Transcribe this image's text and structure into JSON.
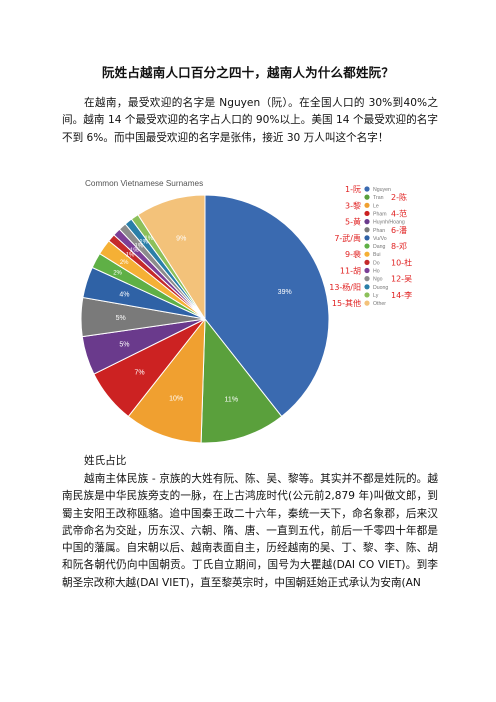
{
  "title": "阮姓占越南人口百分之四十，越南人为什么都姓阮？",
  "intro_paragraph": "在越南，最受欢迎的名字是 Nguyen（阮）。在全国人口的 30%到40%之间。越南 14 个最受欢迎的名字占人口的 90%以上。美国 14 个最受欢迎的名字不到 6%。而中国最受欢迎的名字是张伟，接近 30 万人叫这个名字！",
  "section_heading": "姓氏占比",
  "body_paragraph": "越南主体民族 - 京族的大姓有阮、陈、吴、黎等。其实并不都是姓阮的。越南民族是中华民族旁支的一脉，在上古鸿庞时代(公元前2,879 年)叫做文郎，到蜀主安阳王改称瓯貉。迨中国秦王政二十六年，秦统一天下，命名象郡，后来汉武帝命名为交趾，历东汉、六朝、隋、唐、一直到五代，前后一千零四十年都是中国的藩属。自宋朝以后、越南表面自主，历经越南的吴、丁、黎、李、陈、胡和阮各朝代仍向中国朝贡。丁氏自立期间，国号为大瞿越(DAI CO VIET)。到李朝圣宗改称大越(DAI VIET)，直至黎英宗时，中国朝廷始正式承认为安南(AN",
  "chart_data": {
    "type": "pie",
    "title": "Common Vietnamese Surnames",
    "legend_position": "right",
    "series": [
      {
        "name": "Nguyen",
        "value": 39,
        "label": "39%",
        "color": "#3a6ab0",
        "annotation": "1-阮"
      },
      {
        "name": "Tran",
        "value": 11,
        "label": "11%",
        "color": "#5aa03c",
        "annotation": "2-陈"
      },
      {
        "name": "Le",
        "value": 10,
        "label": "10%",
        "color": "#f0a030",
        "annotation": "3-黎"
      },
      {
        "name": "Pham",
        "value": 7,
        "label": "7%",
        "color": "#cc2222",
        "annotation": "4-范"
      },
      {
        "name": "Huynh/Hoang",
        "value": 5,
        "label": "5%",
        "color": "#6a3a8c",
        "annotation": "5-黄"
      },
      {
        "name": "Phan",
        "value": 5,
        "label": "5%",
        "color": "#7a7a7a",
        "annotation": "6-潘"
      },
      {
        "name": "Vu/Vo",
        "value": 4,
        "label": "4%",
        "color": "#2f62a6",
        "annotation": "7-武/禹"
      },
      {
        "name": "Dang",
        "value": 2,
        "label": "2%",
        "color": "#5fb046",
        "annotation": "8-邓"
      },
      {
        "name": "Bui",
        "value": 2,
        "label": "2%",
        "color": "#f5b035",
        "annotation": "9-裴"
      },
      {
        "name": "Do",
        "value": 1,
        "label": "1%",
        "color": "#c52a2a",
        "annotation": "10-杜"
      },
      {
        "name": "Ho",
        "value": 1,
        "label": "1%",
        "color": "#7b3f96",
        "annotation": "11-胡"
      },
      {
        "name": "Ngo",
        "value": 1,
        "label": "1%",
        "color": "#8c8c8c",
        "annotation": "12-吴"
      },
      {
        "name": "Duong",
        "value": 1,
        "label": "1%",
        "color": "#2a7fa8",
        "annotation": "13-杨/阳"
      },
      {
        "name": "Ly",
        "value": 1,
        "label": "1%",
        "color": "#8cc05a",
        "annotation": "14-李"
      },
      {
        "name": "Other",
        "value": 9,
        "label": "9%",
        "color": "#f3c27a",
        "annotation": "15-其他"
      }
    ]
  }
}
